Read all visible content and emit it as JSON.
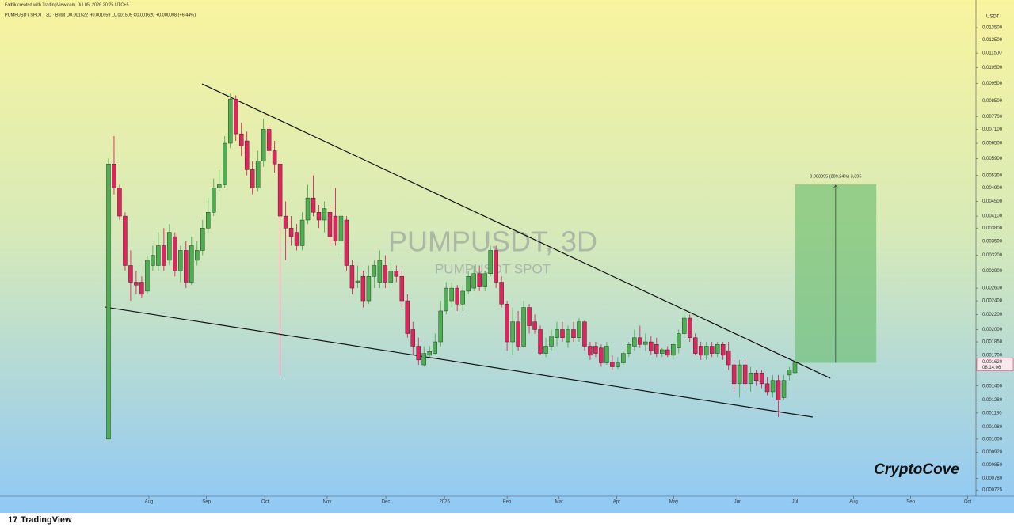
{
  "header": {
    "credit": "Falbik created with TradingView.com, Jul 05, 2026 20:25 UTC+5",
    "legend": "PUMPUSDT SPOT · 3D · Bybit  O0.001522  H0.001659  L0.001505  C0.001620  +0.000098 (+6.44%)"
  },
  "watermark": {
    "title": "PUMPUSDT, 3D",
    "subtitle": "PUMPUSDT SPOT"
  },
  "signature": "CryptoCove",
  "brand": "TradingView",
  "chart_data": {
    "type": "candlestick",
    "log_scale": true,
    "up_color": "#4caf50",
    "down_color": "#e0245e",
    "y_axis_title": "USDT",
    "last_price_label": "0.001620",
    "countdown": "08:14:06",
    "xlim": [
      -19.6,
      156.7
    ],
    "ylim": [
      0.000697,
      0.01609
    ],
    "xticks": [
      {
        "value": 7.3,
        "label": "Aug"
      },
      {
        "value": 17.7,
        "label": "Sep"
      },
      {
        "value": 28.3,
        "label": "Oct"
      },
      {
        "value": 39.5,
        "label": "Nov"
      },
      {
        "value": 50.1,
        "label": "Dec"
      },
      {
        "value": 60.7,
        "label": "2026"
      },
      {
        "value": 72,
        "label": "Feb"
      },
      {
        "value": 81.4,
        "label": "Mar"
      },
      {
        "value": 91.8,
        "label": "Apr"
      },
      {
        "value": 102.1,
        "label": "May"
      },
      {
        "value": 113.7,
        "label": "Jun"
      },
      {
        "value": 124,
        "label": "Jul"
      },
      {
        "value": 134.6,
        "label": "Aug"
      },
      {
        "value": 144.9,
        "label": "Sep"
      },
      {
        "value": 155.2,
        "label": "Oct"
      }
    ],
    "yticks": [
      {
        "value": 0.0135,
        "label": "0.013500"
      },
      {
        "value": 0.0125,
        "label": "0.012500"
      },
      {
        "value": 0.0115,
        "label": "0.011500"
      },
      {
        "value": 0.0105,
        "label": "0.010500"
      },
      {
        "value": 0.0095,
        "label": "0.009500"
      },
      {
        "value": 0.0085,
        "label": "0.008500"
      },
      {
        "value": 0.0077,
        "label": "0.007700"
      },
      {
        "value": 0.0071,
        "label": "0.007100"
      },
      {
        "value": 0.0065,
        "label": "0.006500"
      },
      {
        "value": 0.0059,
        "label": "0.005900"
      },
      {
        "value": 0.0053,
        "label": "0.005300"
      },
      {
        "value": 0.0049,
        "label": "0.004900"
      },
      {
        "value": 0.0045,
        "label": "0.004500"
      },
      {
        "value": 0.0041,
        "label": "0.004100"
      },
      {
        "value": 0.0038,
        "label": "0.003800"
      },
      {
        "value": 0.0035,
        "label": "0.003500"
      },
      {
        "value": 0.0032,
        "label": "0.003200"
      },
      {
        "value": 0.0029,
        "label": "0.002900"
      },
      {
        "value": 0.0026,
        "label": "0.002600"
      },
      {
        "value": 0.0024,
        "label": "0.002400"
      },
      {
        "value": 0.0022,
        "label": "0.002200"
      },
      {
        "value": 0.002,
        "label": "0.002000"
      },
      {
        "value": 0.00185,
        "label": "0.001850"
      },
      {
        "value": 0.0017,
        "label": "0.001700"
      },
      {
        "value": 0.0014,
        "label": "0.001400"
      },
      {
        "value": 0.00128,
        "label": "0.001280"
      },
      {
        "value": 0.00118,
        "label": "0.001180"
      },
      {
        "value": 0.00108,
        "label": "0.001080"
      },
      {
        "value": 0.001,
        "label": "0.001000"
      },
      {
        "value": 0.00092,
        "label": "0.000920"
      },
      {
        "value": 0.00085,
        "label": "0.000850"
      },
      {
        "value": 0.00078,
        "label": "0.000780"
      },
      {
        "value": 0.000725,
        "label": "0.000725"
      }
    ],
    "candles": [
      [
        0.001,
        0.0059,
        0.001,
        0.0057
      ],
      [
        0.0057,
        0.0068,
        0.0047,
        0.0049
      ],
      [
        0.0049,
        0.005,
        0.004,
        0.0041
      ],
      [
        0.0041,
        0.0042,
        0.0029,
        0.003
      ],
      [
        0.003,
        0.0033,
        0.0024,
        0.0027
      ],
      [
        0.0027,
        0.0029,
        0.0025,
        0.00265
      ],
      [
        0.0027,
        0.0028,
        0.00245,
        0.0025
      ],
      [
        0.00255,
        0.0032,
        0.0025,
        0.0031
      ],
      [
        0.003,
        0.0034,
        0.0029,
        0.0032
      ],
      [
        0.003,
        0.0037,
        0.0029,
        0.0034
      ],
      [
        0.0034,
        0.0038,
        0.0029,
        0.003
      ],
      [
        0.0031,
        0.0039,
        0.003,
        0.0037
      ],
      [
        0.0036,
        0.0037,
        0.0028,
        0.0029
      ],
      [
        0.0029,
        0.0034,
        0.0027,
        0.0033
      ],
      [
        0.0033,
        0.0035,
        0.0026,
        0.0027
      ],
      [
        0.0027,
        0.0036,
        0.00265,
        0.0034
      ],
      [
        0.0031,
        0.0035,
        0.003,
        0.0033
      ],
      [
        0.0033,
        0.004,
        0.0032,
        0.0038
      ],
      [
        0.0038,
        0.0046,
        0.0037,
        0.0042
      ],
      [
        0.0042,
        0.0052,
        0.0041,
        0.0049
      ],
      [
        0.0049,
        0.0055,
        0.0048,
        0.005
      ],
      [
        0.005,
        0.0068,
        0.0049,
        0.0065
      ],
      [
        0.0065,
        0.0089,
        0.0063,
        0.0086
      ],
      [
        0.0086,
        0.0088,
        0.0066,
        0.0069
      ],
      [
        0.0069,
        0.0074,
        0.006,
        0.0064
      ],
      [
        0.0066,
        0.007,
        0.0053,
        0.0055
      ],
      [
        0.0055,
        0.0058,
        0.0047,
        0.0049
      ],
      [
        0.0049,
        0.0062,
        0.0048,
        0.0058
      ],
      [
        0.0058,
        0.0076,
        0.0056,
        0.0071
      ],
      [
        0.0071,
        0.0073,
        0.006,
        0.0062
      ],
      [
        0.0062,
        0.0066,
        0.0054,
        0.0057
      ],
      [
        0.0057,
        0.0058,
        0.0015,
        0.0041
      ],
      [
        0.0041,
        0.0045,
        0.0031,
        0.0038
      ],
      [
        0.0038,
        0.0041,
        0.0034,
        0.0036
      ],
      [
        0.0037,
        0.0039,
        0.0033,
        0.0034
      ],
      [
        0.0034,
        0.0042,
        0.0033,
        0.004
      ],
      [
        0.004,
        0.005,
        0.0039,
        0.0046
      ],
      [
        0.0046,
        0.0053,
        0.0041,
        0.0042
      ],
      [
        0.0042,
        0.0044,
        0.0038,
        0.004
      ],
      [
        0.004,
        0.0045,
        0.0037,
        0.0043
      ],
      [
        0.0042,
        0.0044,
        0.0034,
        0.0036
      ],
      [
        0.0041,
        0.0049,
        0.0034,
        0.0035
      ],
      [
        0.0035,
        0.0042,
        0.0032,
        0.0041
      ],
      [
        0.004,
        0.0041,
        0.0029,
        0.003
      ],
      [
        0.003,
        0.0031,
        0.0025,
        0.0026
      ],
      [
        0.0027,
        0.003,
        0.0026,
        0.00272
      ],
      [
        0.0028,
        0.0029,
        0.0023,
        0.0024
      ],
      [
        0.0024,
        0.003,
        0.00235,
        0.0028
      ],
      [
        0.0028,
        0.0031,
        0.0026,
        0.003
      ],
      [
        0.0027,
        0.0033,
        0.0026,
        0.0031
      ],
      [
        0.003,
        0.0032,
        0.0026,
        0.0027
      ],
      [
        0.0027,
        0.0031,
        0.0026,
        0.0029
      ],
      [
        0.0029,
        0.003,
        0.0027,
        0.0028
      ],
      [
        0.0028,
        0.0029,
        0.0023,
        0.0024
      ],
      [
        0.0024,
        0.0025,
        0.0019,
        0.00195
      ],
      [
        0.002,
        0.0021,
        0.0017,
        0.0018
      ],
      [
        0.0018,
        0.0019,
        0.0016,
        0.00165
      ],
      [
        0.0016,
        0.0018,
        0.00158,
        0.00172
      ],
      [
        0.0017,
        0.0018,
        0.00168,
        0.00174
      ],
      [
        0.00172,
        0.00195,
        0.0017,
        0.00185
      ],
      [
        0.00185,
        0.0024,
        0.0018,
        0.00225
      ],
      [
        0.00225,
        0.0027,
        0.0022,
        0.0026
      ],
      [
        0.0024,
        0.0027,
        0.0023,
        0.0026
      ],
      [
        0.0026,
        0.00265,
        0.00225,
        0.00235
      ],
      [
        0.00235,
        0.00265,
        0.00225,
        0.00255
      ],
      [
        0.00255,
        0.0029,
        0.0025,
        0.0028
      ],
      [
        0.0026,
        0.003,
        0.00255,
        0.00285
      ],
      [
        0.00285,
        0.003,
        0.00255,
        0.00262
      ],
      [
        0.00262,
        0.0029,
        0.00255,
        0.00285
      ],
      [
        0.00285,
        0.0034,
        0.0028,
        0.0033
      ],
      [
        0.0033,
        0.0034,
        0.0026,
        0.0027
      ],
      [
        0.0027,
        0.0028,
        0.0023,
        0.00235
      ],
      [
        0.00235,
        0.0024,
        0.00175,
        0.00185
      ],
      [
        0.00185,
        0.0023,
        0.0017,
        0.0021
      ],
      [
        0.0021,
        0.00225,
        0.00175,
        0.0018
      ],
      [
        0.0018,
        0.0024,
        0.00178,
        0.0023
      ],
      [
        0.0023,
        0.00235,
        0.00195,
        0.00205
      ],
      [
        0.0021,
        0.0022,
        0.00195,
        0.002
      ],
      [
        0.002,
        0.00205,
        0.0017,
        0.00172
      ],
      [
        0.00172,
        0.0019,
        0.00168,
        0.0018
      ],
      [
        0.0018,
        0.002,
        0.00175,
        0.00192
      ],
      [
        0.0019,
        0.0021,
        0.0018,
        0.002
      ],
      [
        0.002,
        0.0021,
        0.00185,
        0.0019
      ],
      [
        0.00185,
        0.00205,
        0.00178,
        0.002
      ],
      [
        0.002,
        0.0021,
        0.00185,
        0.0019
      ],
      [
        0.0019,
        0.00215,
        0.00185,
        0.0021
      ],
      [
        0.0021,
        0.00212,
        0.00175,
        0.0018
      ],
      [
        0.0018,
        0.00185,
        0.00165,
        0.0017
      ],
      [
        0.0018,
        0.00185,
        0.00168,
        0.00172
      ],
      [
        0.00178,
        0.00182,
        0.00158,
        0.00162
      ],
      [
        0.00162,
        0.00185,
        0.0016,
        0.0018
      ],
      [
        0.00163,
        0.0017,
        0.00155,
        0.00158
      ],
      [
        0.00158,
        0.00168,
        0.00156,
        0.00162
      ],
      [
        0.00162,
        0.00175,
        0.0016,
        0.00172
      ],
      [
        0.00172,
        0.00185,
        0.00168,
        0.00182
      ],
      [
        0.0018,
        0.002,
        0.00175,
        0.0019
      ],
      [
        0.0019,
        0.00205,
        0.00178,
        0.00182
      ],
      [
        0.00182,
        0.00195,
        0.00175,
        0.00185
      ],
      [
        0.00185,
        0.00192,
        0.0017,
        0.00175
      ],
      [
        0.00182,
        0.0019,
        0.00168,
        0.00172
      ],
      [
        0.00172,
        0.00178,
        0.00168,
        0.00176
      ],
      [
        0.00176,
        0.0018,
        0.00168,
        0.0017
      ],
      [
        0.0017,
        0.00185,
        0.00165,
        0.00182
      ],
      [
        0.00178,
        0.002,
        0.00172,
        0.00195
      ],
      [
        0.00195,
        0.00225,
        0.0019,
        0.00215
      ],
      [
        0.00215,
        0.0022,
        0.00185,
        0.0019
      ],
      [
        0.0019,
        0.00195,
        0.0017,
        0.00172
      ],
      [
        0.0018,
        0.00185,
        0.00165,
        0.0017
      ],
      [
        0.0017,
        0.00185,
        0.00165,
        0.0018
      ],
      [
        0.0018,
        0.00185,
        0.00168,
        0.00172
      ],
      [
        0.00172,
        0.00185,
        0.00168,
        0.00182
      ],
      [
        0.00182,
        0.00185,
        0.00165,
        0.0017
      ],
      [
        0.00175,
        0.00185,
        0.00155,
        0.0016
      ],
      [
        0.0016,
        0.00165,
        0.00135,
        0.00142
      ],
      [
        0.00142,
        0.00165,
        0.0013,
        0.0016
      ],
      [
        0.0016,
        0.00165,
        0.00138,
        0.00142
      ],
      [
        0.00142,
        0.00158,
        0.00135,
        0.00152
      ],
      [
        0.00152,
        0.00155,
        0.0014,
        0.00145
      ],
      [
        0.00152,
        0.00155,
        0.00138,
        0.00142
      ],
      [
        0.00142,
        0.00148,
        0.00132,
        0.00135
      ],
      [
        0.00135,
        0.0015,
        0.0013,
        0.00145
      ],
      [
        0.00145,
        0.0015,
        0.00115,
        0.00128
      ],
      [
        0.0013,
        0.0015,
        0.00128,
        0.00145
      ],
      [
        0.0015,
        0.00158,
        0.00145,
        0.00155
      ],
      [
        0.001522,
        0.001659,
        0.001505,
        0.00162
      ]
    ],
    "trendlines": [
      {
        "x": [
          16.9,
          130.4
        ],
        "y": [
          0.00946,
          0.00147
        ]
      },
      {
        "x": [
          -0.7,
          127.2
        ],
        "y": [
          0.002307,
          0.00115
        ]
      }
    ],
    "position": {
      "x": [
        124,
        138.7
      ],
      "entry": 0.00162,
      "target": 0.00501,
      "label": "0.003395 (209.24%) 3,395",
      "color": "#66bb6a"
    }
  }
}
